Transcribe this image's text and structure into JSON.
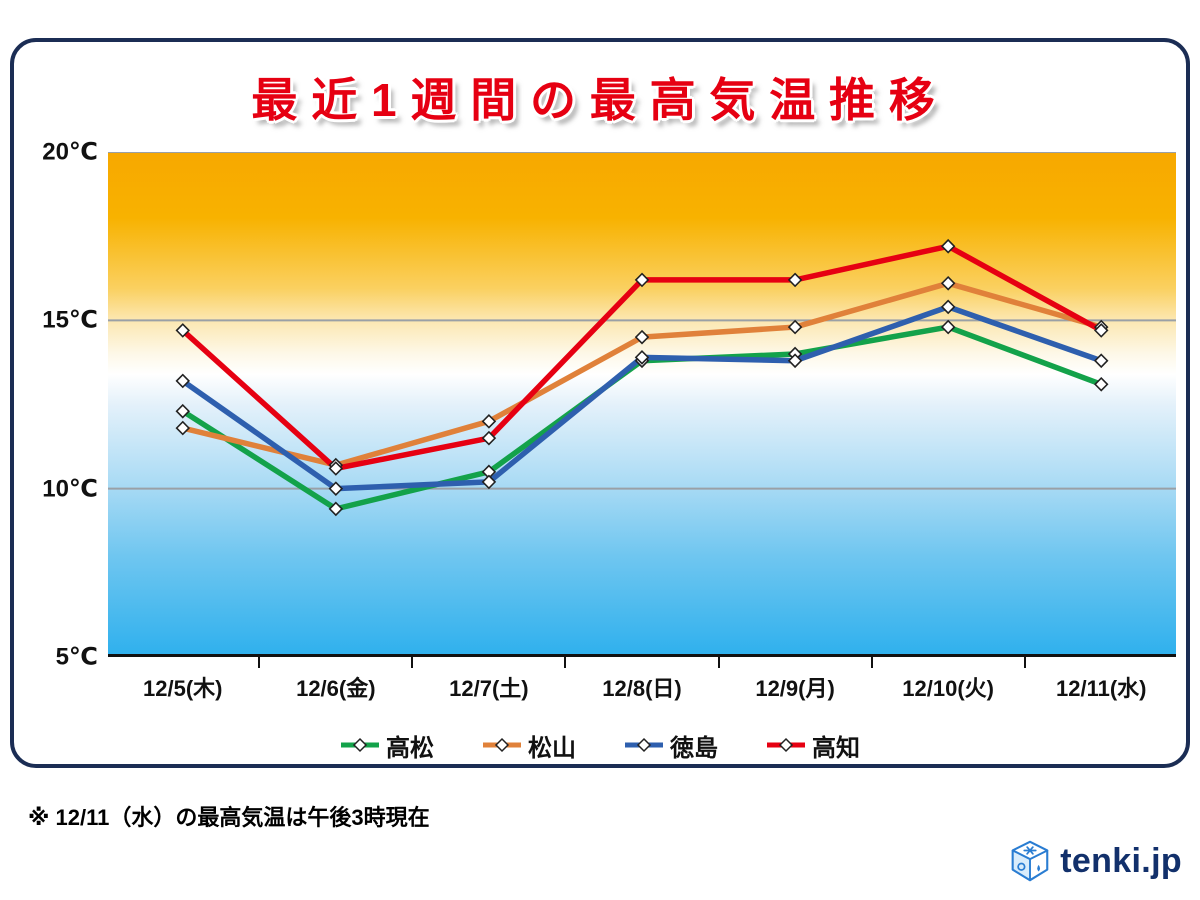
{
  "title": "最近1週間の最高気温推移",
  "footnote": "※ 12/11（水）の最高気温は午後3時現在",
  "logo_text": "tenki.jp",
  "chart_data": {
    "type": "line",
    "categories": [
      "12/5(木)",
      "12/6(金)",
      "12/7(土)",
      "12/8(日)",
      "12/9(月)",
      "12/10(火)",
      "12/11(水)"
    ],
    "series": [
      {
        "name": "高松",
        "color": "#13a24a",
        "values": [
          12.3,
          9.4,
          10.5,
          13.8,
          14.0,
          14.8,
          13.1
        ]
      },
      {
        "name": "松山",
        "color": "#e0813a",
        "values": [
          11.8,
          10.7,
          12.0,
          14.5,
          14.8,
          16.1,
          14.8
        ]
      },
      {
        "name": "徳島",
        "color": "#2e5fae",
        "values": [
          13.2,
          10.0,
          10.2,
          13.9,
          13.8,
          15.4,
          13.8
        ]
      },
      {
        "name": "高知",
        "color": "#e60012",
        "values": [
          14.7,
          10.6,
          11.5,
          16.2,
          16.2,
          17.2,
          14.7
        ]
      }
    ],
    "ylim": [
      5,
      20
    ],
    "y_ticks": [
      {
        "label": "20℃",
        "value": 20
      },
      {
        "label": "15℃",
        "value": 15
      },
      {
        "label": "10℃",
        "value": 10
      },
      {
        "label": "5℃",
        "value": 5
      }
    ],
    "x_inset_frac": 0.07,
    "grid": true,
    "gridline_color": "#9aa0a6",
    "axis_color": "#111111",
    "legend_position": "bottom",
    "marker": {
      "shape": "diamond",
      "fill": "#ffffff",
      "stroke": "#222222"
    },
    "background_gradient": [
      {
        "offset": 0.0,
        "color": "#F7A800"
      },
      {
        "offset": 0.13,
        "color": "#F8B200"
      },
      {
        "offset": 0.27,
        "color": "#FAD060"
      },
      {
        "offset": 0.33,
        "color": "#FCE6AE"
      },
      {
        "offset": 0.4,
        "color": "#FDF8E8"
      },
      {
        "offset": 0.44,
        "color": "#FFFFFF"
      },
      {
        "offset": 0.5,
        "color": "#E4F1FA"
      },
      {
        "offset": 0.6,
        "color": "#BFE3F7"
      },
      {
        "offset": 0.67,
        "color": "#A5D9F4"
      },
      {
        "offset": 0.8,
        "color": "#6FC6F0"
      },
      {
        "offset": 1.0,
        "color": "#2EB0ED"
      }
    ]
  }
}
